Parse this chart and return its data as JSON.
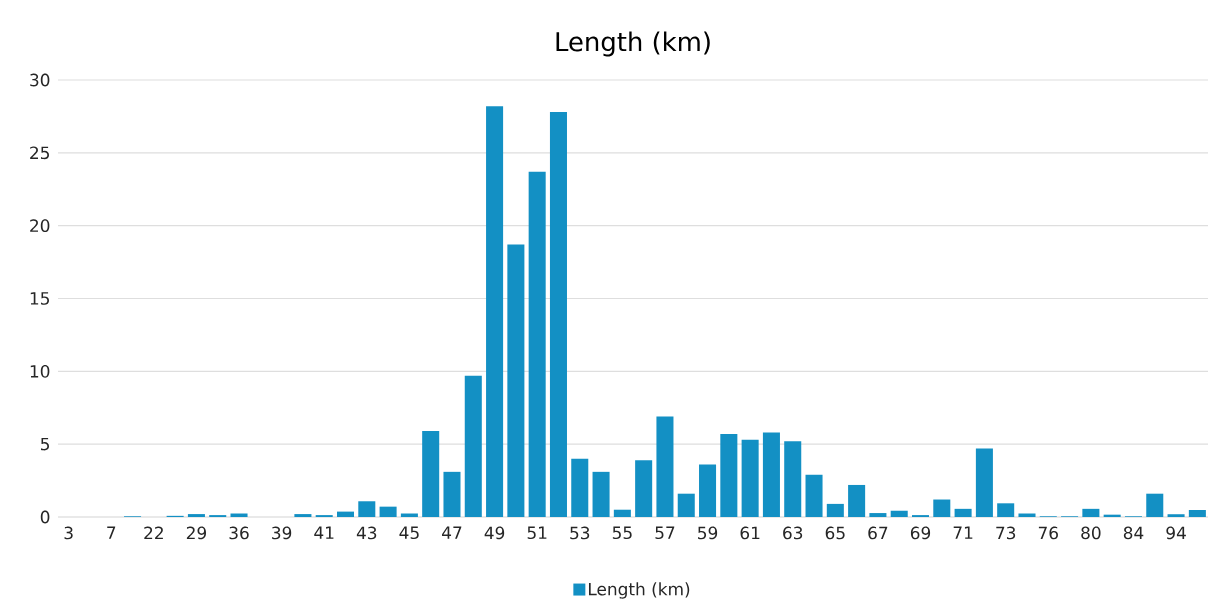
{
  "chart_data": {
    "type": "bar",
    "title": "Length (km)",
    "categories": [
      "3",
      null,
      "7",
      null,
      "22",
      null,
      "29",
      null,
      "36",
      null,
      "39",
      null,
      "41",
      null,
      "43",
      null,
      "45",
      null,
      "47",
      null,
      "49",
      null,
      "51",
      null,
      "53",
      null,
      "55",
      null,
      "57",
      null,
      "59",
      null,
      "61",
      null,
      "63",
      null,
      "65",
      null,
      "67",
      null,
      "69",
      null,
      "71",
      null,
      "73",
      null,
      "76",
      null,
      "80",
      null,
      "84",
      null,
      "94",
      null
    ],
    "series": [
      {
        "name": "Length (km)",
        "color": "#1390c4",
        "values": [
          0,
          0,
          0,
          0.05,
          0,
          0.08,
          0.2,
          0.13,
          0.24,
          0,
          0,
          0.2,
          0.13,
          0.37,
          1.08,
          0.71,
          0.24,
          5.9,
          3.1,
          9.7,
          28.2,
          18.7,
          23.7,
          27.8,
          4.0,
          3.1,
          0.5,
          3.9,
          6.9,
          1.6,
          3.6,
          5.7,
          5.3,
          5.8,
          5.2,
          2.9,
          0.9,
          2.2,
          0.27,
          0.43,
          0.13,
          1.2,
          0.56,
          4.7,
          0.94,
          0.24,
          0.05,
          0.05,
          0.56,
          0.16,
          0.05,
          1.6,
          0.19,
          0.48
        ]
      }
    ],
    "ylim": [
      0,
      30
    ],
    "yticks": [
      0,
      5,
      10,
      15,
      20,
      25,
      30
    ],
    "grid": "y",
    "legend": "bottom"
  }
}
